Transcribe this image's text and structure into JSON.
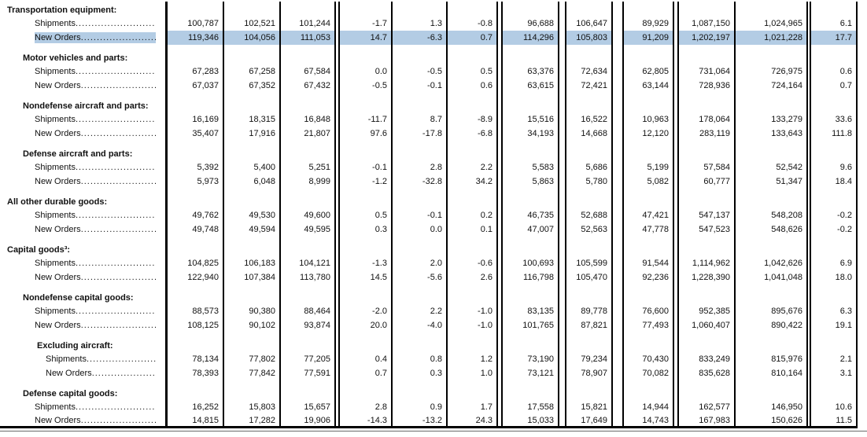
{
  "document": {
    "kind": "durable-goods-report-table",
    "highlight_color": "#b3cce4",
    "shipments_label": "Shipments",
    "new_orders_label": "New Orders",
    "sections": [
      {
        "title": "Transportation equipment:",
        "level": 1,
        "rows": [
          {
            "label": "Shipments",
            "highlighted": false,
            "values": [
              "100,787",
              "102,521",
              "101,244",
              "-1.7",
              "1.3",
              "-0.8",
              "96,688",
              "106,647",
              "89,929",
              "1,087,150",
              "1,024,965",
              "6.1"
            ]
          },
          {
            "label": "New Orders",
            "highlighted": true,
            "values": [
              "119,346",
              "104,056",
              "111,053",
              "14.7",
              "-6.3",
              "0.7",
              "114,296",
              "105,803",
              "91,209",
              "1,202,197",
              "1,021,228",
              "17.7"
            ]
          }
        ]
      },
      {
        "title": "Motor vehicles and parts:",
        "level": 2,
        "rows": [
          {
            "label": "Shipments",
            "highlighted": false,
            "values": [
              "67,283",
              "67,258",
              "67,584",
              "0.0",
              "-0.5",
              "0.5",
              "63,376",
              "72,634",
              "62,805",
              "731,064",
              "726,975",
              "0.6"
            ]
          },
          {
            "label": "New Orders",
            "highlighted": false,
            "values": [
              "67,037",
              "67,352",
              "67,432",
              "-0.5",
              "-0.1",
              "0.6",
              "63,615",
              "72,421",
              "63,144",
              "728,936",
              "724,164",
              "0.7"
            ]
          }
        ]
      },
      {
        "title": "Nondefense aircraft and parts:",
        "level": 2,
        "rows": [
          {
            "label": "Shipments",
            "highlighted": false,
            "values": [
              "16,169",
              "18,315",
              "16,848",
              "-11.7",
              "8.7",
              "-8.9",
              "15,516",
              "16,522",
              "10,963",
              "178,064",
              "133,279",
              "33.6"
            ]
          },
          {
            "label": "New Orders",
            "highlighted": false,
            "values": [
              "35,407",
              "17,916",
              "21,807",
              "97.6",
              "-17.8",
              "-6.8",
              "34,193",
              "14,668",
              "12,120",
              "283,119",
              "133,643",
              "111.8"
            ]
          }
        ]
      },
      {
        "title": "Defense aircraft and parts:",
        "level": 2,
        "rows": [
          {
            "label": "Shipments",
            "highlighted": false,
            "values": [
              "5,392",
              "5,400",
              "5,251",
              "-0.1",
              "2.8",
              "2.2",
              "5,583",
              "5,686",
              "5,199",
              "57,584",
              "52,542",
              "9.6"
            ]
          },
          {
            "label": "New Orders",
            "highlighted": false,
            "values": [
              "5,973",
              "6,048",
              "8,999",
              "-1.2",
              "-32.8",
              "34.2",
              "5,863",
              "5,780",
              "5,082",
              "60,777",
              "51,347",
              "18.4"
            ]
          }
        ]
      },
      {
        "title": "All other durable goods:",
        "level": 1,
        "rows": [
          {
            "label": "Shipments",
            "highlighted": false,
            "values": [
              "49,762",
              "49,530",
              "49,600",
              "0.5",
              "-0.1",
              "0.2",
              "46,735",
              "52,688",
              "47,421",
              "547,137",
              "548,208",
              "-0.2"
            ]
          },
          {
            "label": "New Orders",
            "highlighted": false,
            "values": [
              "49,748",
              "49,594",
              "49,595",
              "0.3",
              "0.0",
              "0.1",
              "47,007",
              "52,563",
              "47,778",
              "547,523",
              "548,626",
              "-0.2"
            ]
          }
        ]
      },
      {
        "title": "Capital goods³:",
        "level": 1,
        "rows": [
          {
            "label": "Shipments",
            "highlighted": false,
            "values": [
              "104,825",
              "106,183",
              "104,121",
              "-1.3",
              "2.0",
              "-0.6",
              "100,693",
              "105,599",
              "91,544",
              "1,114,962",
              "1,042,626",
              "6.9"
            ]
          },
          {
            "label": "New Orders",
            "highlighted": false,
            "values": [
              "122,940",
              "107,384",
              "113,780",
              "14.5",
              "-5.6",
              "2.6",
              "116,798",
              "105,470",
              "92,236",
              "1,228,390",
              "1,041,048",
              "18.0"
            ]
          }
        ]
      },
      {
        "title": "Nondefense capital goods:",
        "level": 2,
        "rows": [
          {
            "label": "Shipments",
            "highlighted": false,
            "values": [
              "88,573",
              "90,380",
              "88,464",
              "-2.0",
              "2.2",
              "-1.0",
              "83,135",
              "89,778",
              "76,600",
              "952,385",
              "895,676",
              "6.3"
            ]
          },
          {
            "label": "New Orders",
            "highlighted": false,
            "values": [
              "108,125",
              "90,102",
              "93,874",
              "20.0",
              "-4.0",
              "-1.0",
              "101,765",
              "87,821",
              "77,493",
              "1,060,407",
              "890,422",
              "19.1"
            ]
          }
        ]
      },
      {
        "title": "Excluding aircraft:",
        "level": 3,
        "rows": [
          {
            "label": "Shipments",
            "highlighted": false,
            "values": [
              "78,134",
              "77,802",
              "77,205",
              "0.4",
              "0.8",
              "1.2",
              "73,190",
              "79,234",
              "70,430",
              "833,249",
              "815,976",
              "2.1"
            ]
          },
          {
            "label": "New Orders",
            "highlighted": false,
            "values": [
              "78,393",
              "77,842",
              "77,591",
              "0.7",
              "0.3",
              "1.0",
              "73,121",
              "78,907",
              "70,082",
              "835,628",
              "810,164",
              "3.1"
            ]
          }
        ]
      },
      {
        "title": "Defense capital goods:",
        "level": 2,
        "rows": [
          {
            "label": "Shipments",
            "highlighted": false,
            "values": [
              "16,252",
              "15,803",
              "15,657",
              "2.8",
              "0.9",
              "1.7",
              "17,558",
              "15,821",
              "14,944",
              "162,577",
              "146,950",
              "10.6"
            ]
          },
          {
            "label": "New Orders",
            "highlighted": false,
            "values": [
              "14,815",
              "17,282",
              "19,906",
              "-14.3",
              "-13.2",
              "24.3",
              "15,033",
              "17,649",
              "14,743",
              "167,983",
              "150,626",
              "11.5"
            ]
          }
        ]
      }
    ]
  }
}
